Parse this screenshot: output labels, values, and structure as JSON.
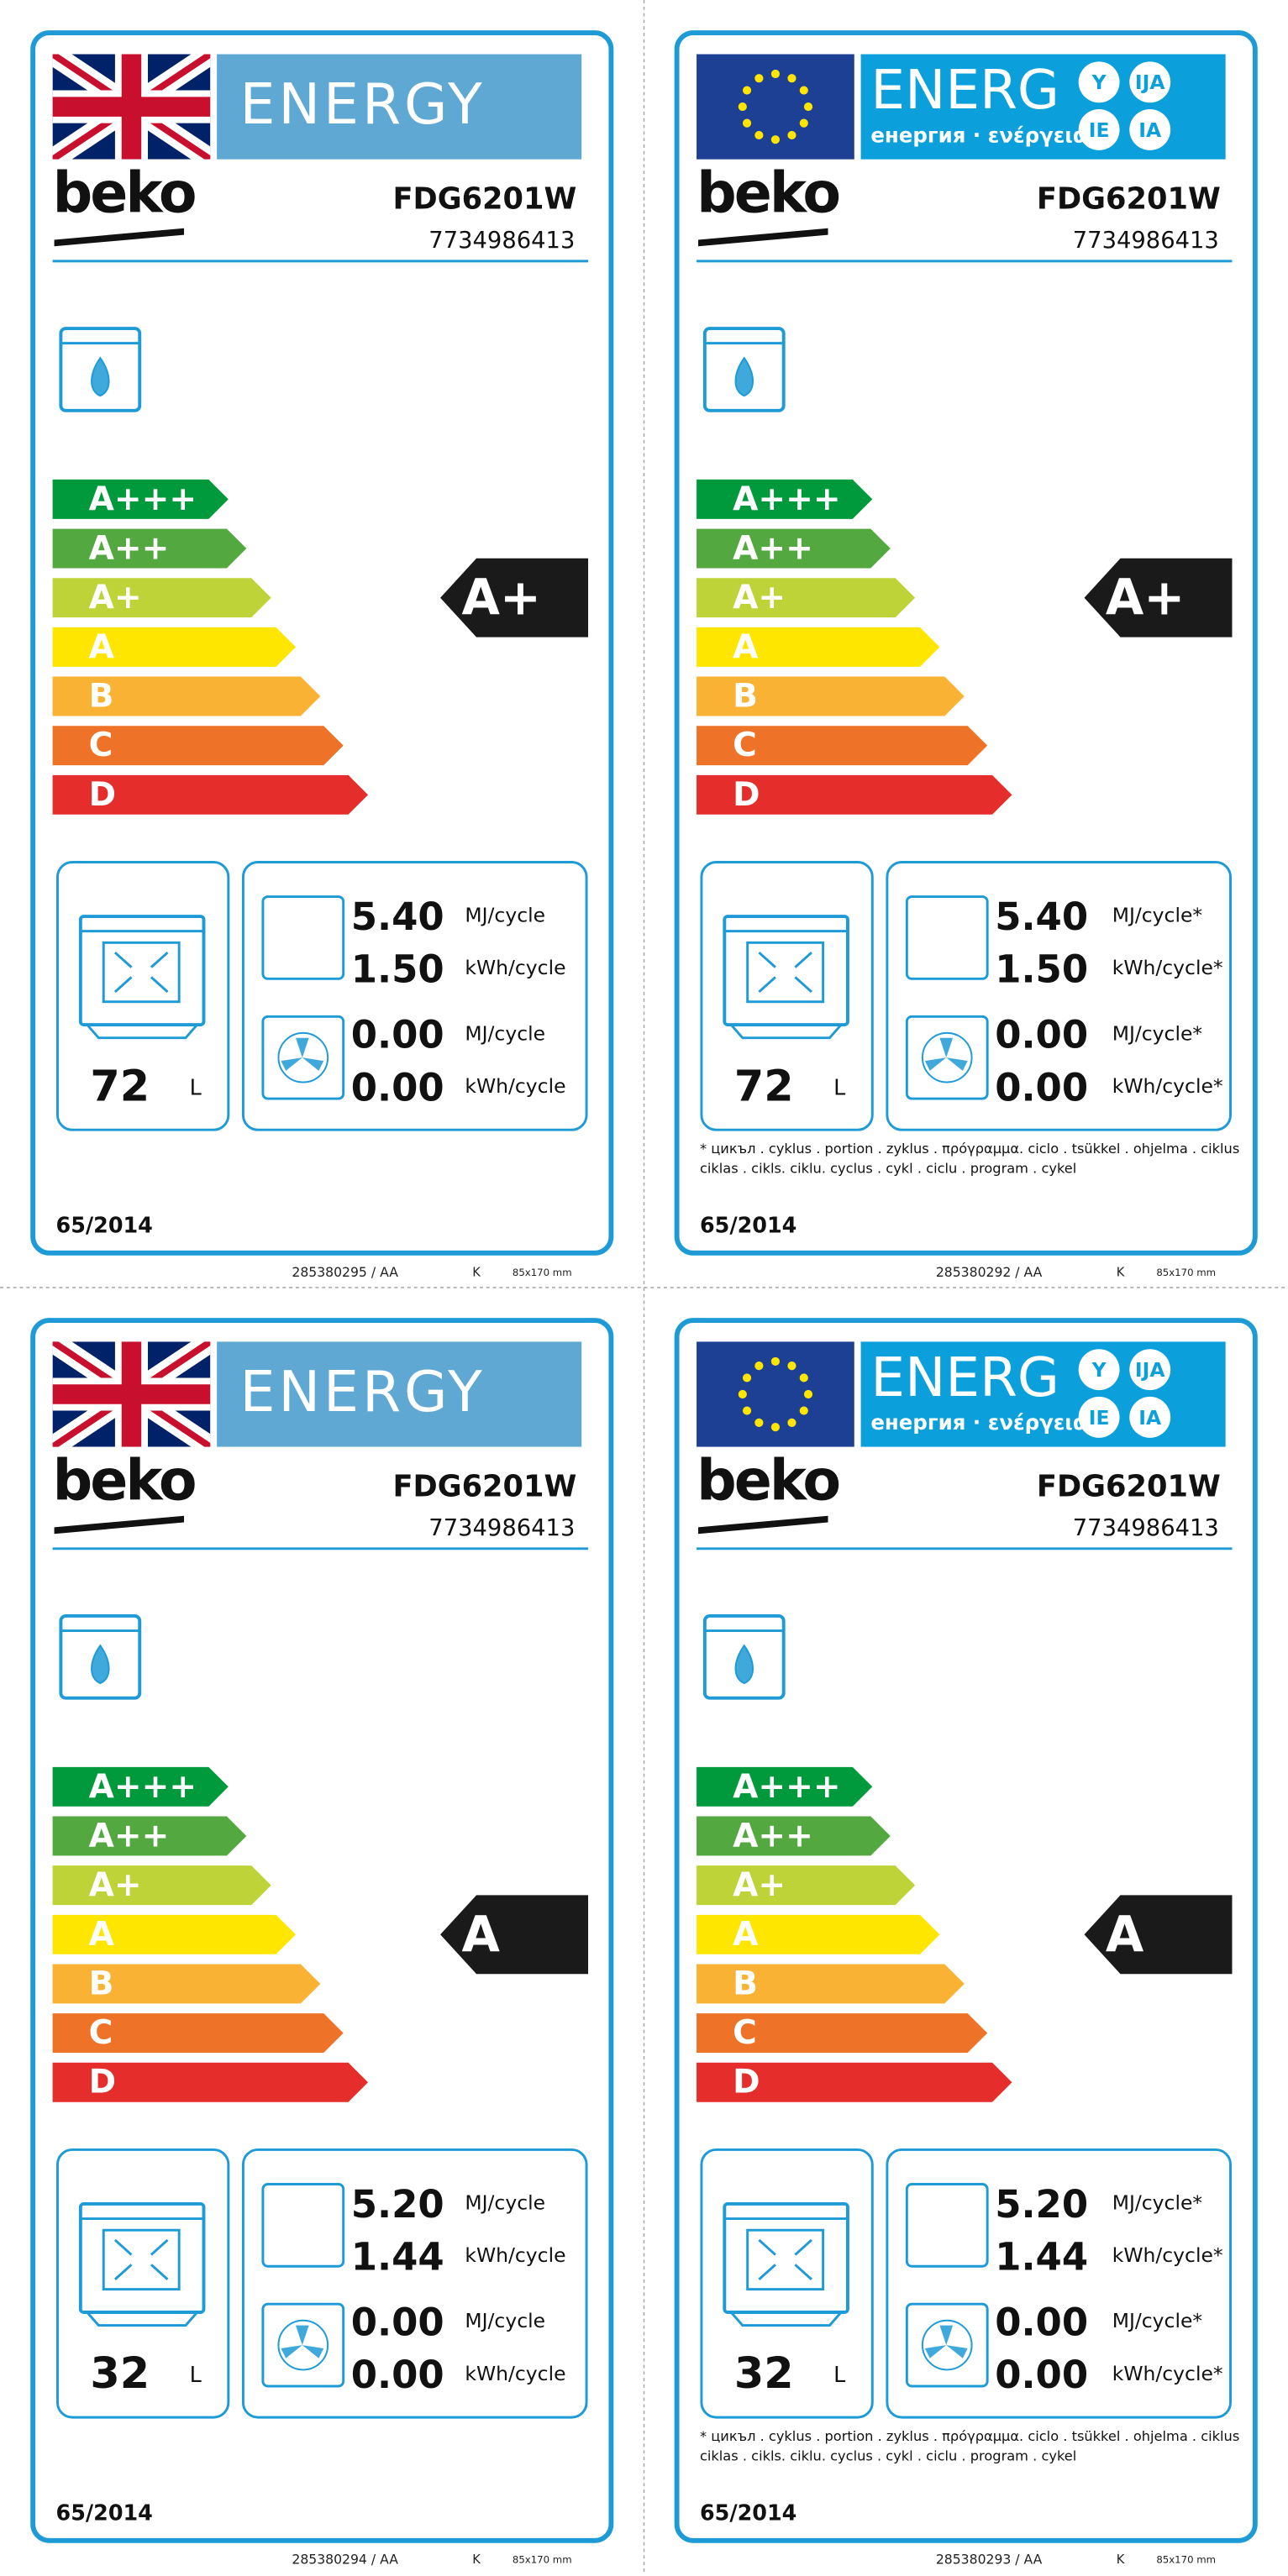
{
  "labels": [
    {
      "header": {
        "energy": "ENERGY"
      },
      "brand": "beko",
      "model": "FDG6201W",
      "code": "7734986413",
      "classes": [
        "A+++",
        "A++",
        "A+",
        "A",
        "B",
        "C",
        "D"
      ],
      "rating": "A+",
      "volume": "72",
      "volume_unit": "L",
      "consumption": [
        {
          "value": "5.40",
          "unit": "MJ/cycle"
        },
        {
          "value": "1.50",
          "unit": "kWh/cycle"
        },
        {
          "value": "0.00",
          "unit": "MJ/cycle"
        },
        {
          "value": "0.00",
          "unit": "kWh/cycle"
        }
      ],
      "regulation": "65/2014",
      "footer": [
        "285380295 / AA",
        "K",
        "85x170 mm"
      ]
    },
    {
      "header": {
        "energy": "ENERG",
        "languages": "енергия · ενέργεια",
        "badges": [
          "Y",
          "IJA",
          "IE",
          "IA"
        ]
      },
      "brand": "beko",
      "model": "FDG6201W",
      "code": "7734986413",
      "classes": [
        "A+++",
        "A++",
        "A+",
        "A",
        "B",
        "C",
        "D"
      ],
      "rating": "A+",
      "volume": "72",
      "volume_unit": "L",
      "consumption": [
        {
          "value": "5.40",
          "unit": "MJ/cycle*"
        },
        {
          "value": "1.50",
          "unit": "kWh/cycle*"
        },
        {
          "value": "0.00",
          "unit": "MJ/cycle*"
        },
        {
          "value": "0.00",
          "unit": "kWh/cycle*"
        }
      ],
      "footnote": [
        "* цикъл . cyklus . portion . zyklus . πρόγραμμα. ciclo . tsükkel . ohjelma . ciklus",
        "ciklas . cikls. ciklu. cyclus . cykl . ciclu . program . cykel"
      ],
      "regulation": "65/2014",
      "footer": [
        "285380292 / AA",
        "K",
        "85x170 mm"
      ]
    },
    {
      "header": {
        "energy": "ENERGY"
      },
      "brand": "beko",
      "model": "FDG6201W",
      "code": "7734986413",
      "classes": [
        "A+++",
        "A++",
        "A+",
        "A",
        "B",
        "C",
        "D"
      ],
      "rating": "A",
      "volume": "32",
      "volume_unit": "L",
      "consumption": [
        {
          "value": "5.20",
          "unit": "MJ/cycle"
        },
        {
          "value": "1.44",
          "unit": "kWh/cycle"
        },
        {
          "value": "0.00",
          "unit": "MJ/cycle"
        },
        {
          "value": "0.00",
          "unit": "kWh/cycle"
        }
      ],
      "regulation": "65/2014",
      "footer": [
        "285380294 / AA",
        "K",
        "85x170 mm"
      ]
    },
    {
      "header": {
        "energy": "ENERG",
        "languages": "енергия · ενέργεια",
        "badges": [
          "Y",
          "IJA",
          "IE",
          "IA"
        ]
      },
      "brand": "beko",
      "model": "FDG6201W",
      "code": "7734986413",
      "classes": [
        "A+++",
        "A++",
        "A+",
        "A",
        "B",
        "C",
        "D"
      ],
      "rating": "A",
      "volume": "32",
      "volume_unit": "L",
      "consumption": [
        {
          "value": "5.20",
          "unit": "MJ/cycle*"
        },
        {
          "value": "1.44",
          "unit": "kWh/cycle*"
        },
        {
          "value": "0.00",
          "unit": "MJ/cycle*"
        },
        {
          "value": "0.00",
          "unit": "kWh/cycle*"
        }
      ],
      "footnote": [
        "* цикъл . cyklus . portion . zyklus . πρόγραμμα. ciclo . tsükkel . ohjelma . ciklus",
        "ciklas . cikls. ciklu. cyclus . cykl . ciclu . program . cykel"
      ],
      "regulation": "65/2014",
      "footer": [
        "285380293 / AA",
        "K",
        "85x170 mm"
      ]
    }
  ]
}
